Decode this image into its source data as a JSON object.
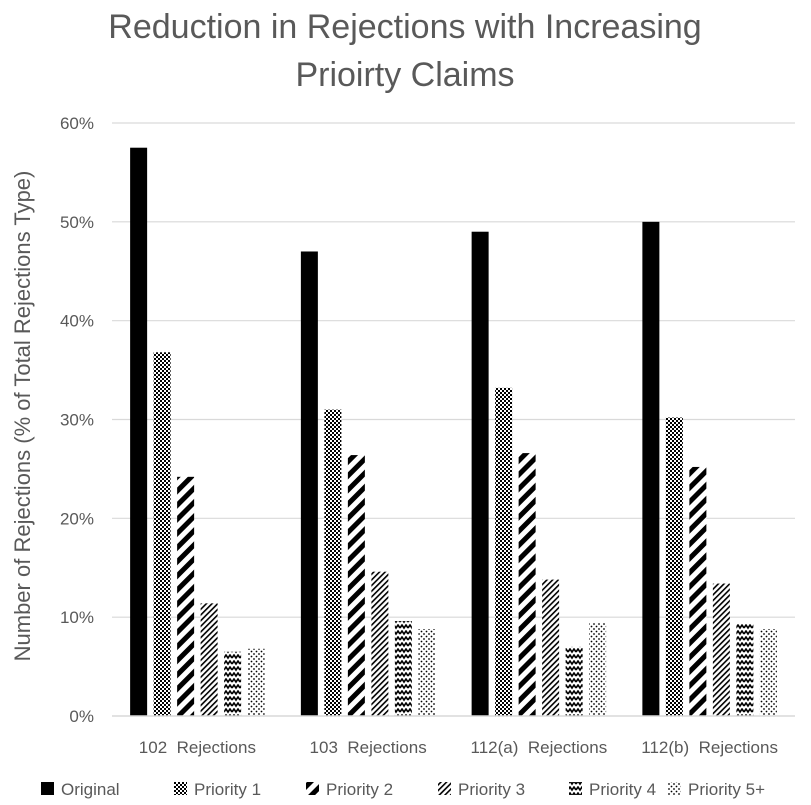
{
  "chart_data": {
    "type": "bar",
    "title": "Reduction in Rejections with Increasing Prioirty Claims",
    "ylabel": "Number of Rejections (% of Total Rejections Type)",
    "xlabel": "",
    "ylim": [
      0,
      60
    ],
    "yticks": [
      "0%",
      "10%",
      "20%",
      "30%",
      "40%",
      "50%",
      "60%"
    ],
    "grid": true,
    "legend_position": "bottom",
    "categories": [
      "102  Rejections",
      "103  Rejections",
      "112(a)  Rejections",
      "112(b)  Rejections"
    ],
    "series": [
      {
        "name": "Original",
        "pattern": "solid",
        "values": [
          57.5,
          47.0,
          49.0,
          50.0
        ]
      },
      {
        "name": "Priority 1",
        "pattern": "checker",
        "values": [
          36.8,
          31.0,
          33.2,
          30.2
        ]
      },
      {
        "name": "Priority 2",
        "pattern": "wide-diagonal",
        "values": [
          24.2,
          26.4,
          26.6,
          25.2
        ]
      },
      {
        "name": "Priority 3",
        "pattern": "fine-diagonal",
        "values": [
          11.4,
          14.6,
          13.8,
          13.4
        ]
      },
      {
        "name": "Priority 4",
        "pattern": "zigzag",
        "values": [
          6.5,
          9.6,
          7.0,
          9.3
        ]
      },
      {
        "name": "Priority 5+",
        "pattern": "dots",
        "values": [
          6.8,
          8.8,
          9.4,
          8.8
        ]
      }
    ],
    "colors": {
      "bar": "#000000",
      "grid": "#d9d9d9",
      "text": "#595959"
    }
  }
}
